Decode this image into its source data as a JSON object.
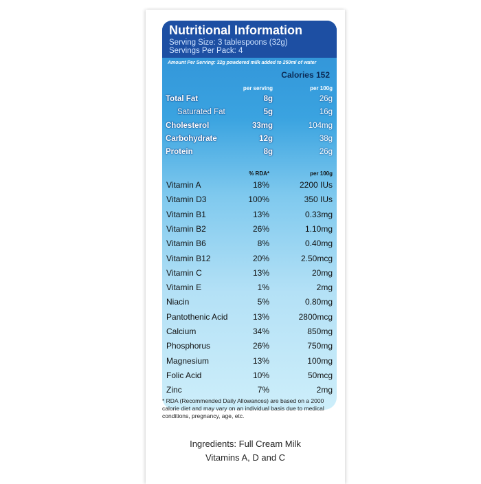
{
  "header": {
    "title": "Nutritional Information",
    "serving_size": "Serving Size: 3 tablespoons (32g)",
    "servings_per_pack": "Servings Per Pack: 4"
  },
  "amount_per_serving": "Amount Per Serving: 32g powdered milk added to 250ml of water",
  "calories": "Calories  152",
  "macros": {
    "columns": [
      "per serving",
      "per 100g"
    ],
    "rows": [
      [
        "Total Fat",
        "8g",
        "26g"
      ],
      [
        "Saturated Fat",
        "5g",
        "16g"
      ],
      [
        "Cholesterol",
        "33mg",
        "104mg"
      ],
      [
        "Carbohydrate",
        "12g",
        "38g"
      ],
      [
        "Protein",
        "8g",
        "26g"
      ]
    ]
  },
  "vitamins": {
    "columns": [
      "% RDA*",
      "per 100g"
    ],
    "rows": [
      [
        "Vitamin A",
        "18%",
        "2200 IUs"
      ],
      [
        "Vitamin D3",
        "100%",
        "350 IUs"
      ],
      [
        "Vitamin B1",
        "13%",
        "0.33mg"
      ],
      [
        "Vitamin B2",
        "26%",
        "1.10mg"
      ],
      [
        "Vitamin B6",
        "8%",
        "0.40mg"
      ],
      [
        "Vitamin B12",
        "20%",
        "2.50mcg"
      ],
      [
        "Vitamin C",
        "13%",
        "20mg"
      ],
      [
        "Vitamin E",
        "1%",
        "2mg"
      ],
      [
        "Niacin",
        "5%",
        "0.80mg"
      ],
      [
        "Pantothenic Acid",
        "13%",
        "2800mcg"
      ],
      [
        "Calcium",
        "34%",
        "850mg"
      ],
      [
        "Phosphorus",
        "26%",
        "750mg"
      ],
      [
        "Magnesium",
        "13%",
        "100mg"
      ],
      [
        "Folic Acid",
        "10%",
        "50mcg"
      ],
      [
        "Zinc",
        "7%",
        "2mg"
      ]
    ]
  },
  "footnote": "* RDA (Recommended Daily Allowances) are based on a 2000 calorie diet and may vary on an individual basis due to medical conditions, pregnancy, age, etc.",
  "ingredients": [
    "Ingredients: Full Cream Milk",
    "Vitamins A, D and C"
  ]
}
